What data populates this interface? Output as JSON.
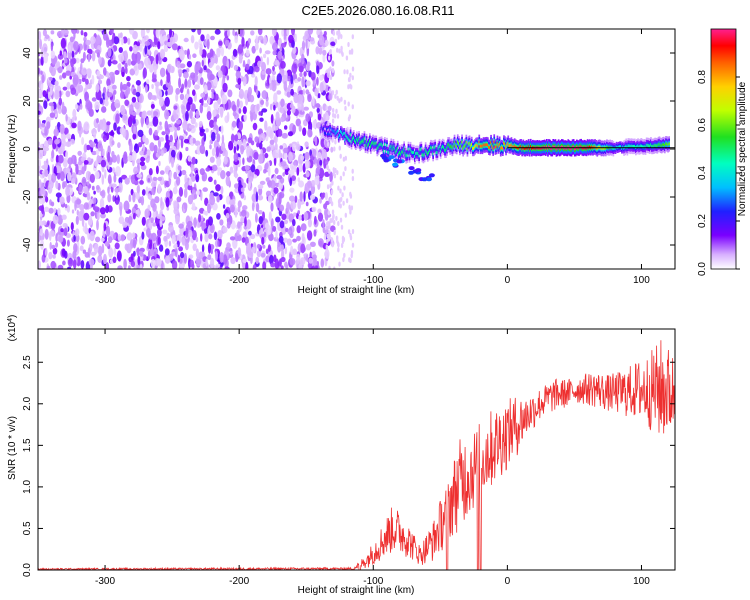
{
  "title": "C2E5.2026.080.16.08.R11",
  "chart_data": [
    {
      "type": "heatmap",
      "panel": "top",
      "xlabel": "Height of straight line (km)",
      "ylabel": "Frequency (Hz)",
      "xlim": [
        -350,
        125
      ],
      "ylim": [
        -50,
        50
      ],
      "xticks": [
        -300,
        -200,
        -100,
        0,
        100
      ],
      "yticks": [
        -40,
        -20,
        0,
        20,
        40
      ],
      "colorbar": {
        "label": "Normalized spectral amplitude",
        "range": [
          0,
          1
        ],
        "ticks": [
          "0.0",
          "0.2",
          "0.4",
          "0.6",
          "0.8"
        ]
      },
      "noise_region_x": [
        -350,
        -130
      ],
      "ridge": [
        {
          "x": -140,
          "f": 8,
          "amp": 0.2
        },
        {
          "x": -130,
          "f": 7,
          "amp": 0.3
        },
        {
          "x": -120,
          "f": 5,
          "amp": 0.45
        },
        {
          "x": -110,
          "f": 3.5,
          "amp": 0.5
        },
        {
          "x": -100,
          "f": 2,
          "amp": 0.5
        },
        {
          "x": -90,
          "f": 0,
          "amp": 0.45
        },
        {
          "x": -80,
          "f": -1,
          "amp": 0.5
        },
        {
          "x": -70,
          "f": -2,
          "amp": 0.45
        },
        {
          "x": -60,
          "f": -1,
          "amp": 0.5
        },
        {
          "x": -50,
          "f": 0,
          "amp": 0.45
        },
        {
          "x": -40,
          "f": 1.5,
          "amp": 0.6
        },
        {
          "x": -30,
          "f": 1.5,
          "amp": 0.6
        },
        {
          "x": -20,
          "f": 2,
          "amp": 0.85
        },
        {
          "x": -10,
          "f": 1.5,
          "amp": 0.85
        },
        {
          "x": 0,
          "f": 1.5,
          "amp": 0.8
        },
        {
          "x": 10,
          "f": 0.5,
          "amp": 0.9
        },
        {
          "x": 20,
          "f": 0.5,
          "amp": 0.95
        },
        {
          "x": 30,
          "f": 0.5,
          "amp": 1.0
        },
        {
          "x": 40,
          "f": 0.5,
          "amp": 1.0
        },
        {
          "x": 50,
          "f": 0.5,
          "amp": 1.0
        },
        {
          "x": 60,
          "f": 0.5,
          "amp": 0.95
        },
        {
          "x": 70,
          "f": 0.5,
          "amp": 0.7
        },
        {
          "x": 80,
          "f": 0.5,
          "amp": 0.4
        },
        {
          "x": 90,
          "f": 1,
          "amp": 0.45
        },
        {
          "x": 100,
          "f": 1,
          "amp": 0.45
        },
        {
          "x": 110,
          "f": 1.5,
          "amp": 0.5
        },
        {
          "x": 120,
          "f": 2,
          "amp": 0.6
        }
      ],
      "branch": [
        {
          "x": -90,
          "f": -4
        },
        {
          "x": -80,
          "f": -6
        },
        {
          "x": -70,
          "f": -9
        },
        {
          "x": -60,
          "f": -12
        }
      ],
      "reference_line": {
        "x0": 0,
        "x1": 125,
        "f": 0.5
      }
    },
    {
      "type": "line",
      "panel": "bottom",
      "xlabel": "Height of straight line (km)",
      "ylabel": "SNR (10 * v/v)",
      "yscale_label": "(x10",
      "yscale_exp": "4",
      "yscale_close": ")",
      "xlim": [
        -350,
        125
      ],
      "ylim": [
        0,
        2.9
      ],
      "xticks": [
        -300,
        -200,
        -100,
        0,
        100
      ],
      "yticks": [
        "0.0",
        "0.5",
        "1.0",
        "1.5",
        "2.0",
        "2.5"
      ],
      "color": "#ee3030",
      "envelope": [
        {
          "x": -350,
          "lo": 0.0,
          "hi": 0.02
        },
        {
          "x": -115,
          "lo": 0.0,
          "hi": 0.03
        },
        {
          "x": -105,
          "lo": 0.02,
          "hi": 0.2
        },
        {
          "x": -95,
          "lo": 0.1,
          "hi": 0.5
        },
        {
          "x": -85,
          "lo": 0.2,
          "hi": 0.8
        },
        {
          "x": -75,
          "lo": 0.15,
          "hi": 0.6
        },
        {
          "x": -65,
          "lo": 0.05,
          "hi": 0.3
        },
        {
          "x": -55,
          "lo": 0.1,
          "hi": 0.6
        },
        {
          "x": -45,
          "lo": 0.3,
          "hi": 1.1
        },
        {
          "x": -35,
          "lo": 0.5,
          "hi": 1.6
        },
        {
          "x": -25,
          "lo": 0.7,
          "hi": 1.7
        },
        {
          "x": -15,
          "lo": 0.9,
          "hi": 1.9
        },
        {
          "x": -5,
          "lo": 1.1,
          "hi": 2.0
        },
        {
          "x": 5,
          "lo": 1.3,
          "hi": 2.1
        },
        {
          "x": 15,
          "lo": 1.6,
          "hi": 2.1
        },
        {
          "x": 25,
          "lo": 1.8,
          "hi": 2.2
        },
        {
          "x": 35,
          "lo": 1.9,
          "hi": 2.3
        },
        {
          "x": 45,
          "lo": 1.95,
          "hi": 2.3
        },
        {
          "x": 55,
          "lo": 2.0,
          "hi": 2.35
        },
        {
          "x": 65,
          "lo": 1.95,
          "hi": 2.4
        },
        {
          "x": 75,
          "lo": 1.9,
          "hi": 2.35
        },
        {
          "x": 85,
          "lo": 1.85,
          "hi": 2.4
        },
        {
          "x": 95,
          "lo": 1.8,
          "hi": 2.5
        },
        {
          "x": 105,
          "lo": 1.7,
          "hi": 2.6
        },
        {
          "x": 115,
          "lo": 1.5,
          "hi": 2.8
        },
        {
          "x": 125,
          "lo": 1.6,
          "hi": 2.6
        }
      ],
      "dropouts_x": [
        -110,
        -45,
        -22,
        -20
      ]
    }
  ]
}
